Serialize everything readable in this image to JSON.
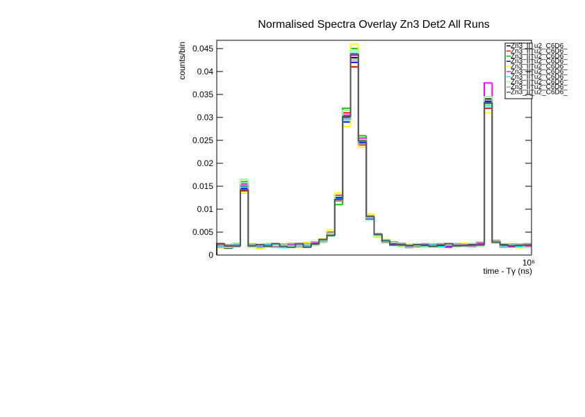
{
  "chart_data": {
    "type": "histogram",
    "title": "Normalised Spectra Overlay Zn3 Det2 All Runs",
    "x_label": "time - Tγ (ns)",
    "y_label": "counts/bin",
    "bins": [
      0,
      25000,
      50000,
      75000,
      100000,
      125000,
      150000,
      175000,
      200000,
      225000,
      250000,
      275000,
      300000,
      325000,
      350000,
      375000,
      400000,
      425000,
      450000,
      475000,
      500000,
      525000,
      550000,
      575000,
      600000,
      625000,
      650000,
      675000,
      700000,
      725000,
      750000,
      775000,
      800000,
      825000,
      850000,
      875000,
      900000,
      925000,
      950000,
      975000,
      1000000
    ],
    "xlim": [
      0,
      1000000
    ],
    "xticks": [
      {
        "value": 1000000,
        "label": "10⁶"
      }
    ],
    "ylim": [
      0,
      0.0468
    ],
    "yticks": [
      0,
      0.005,
      0.01,
      0.015,
      0.02,
      0.025,
      0.03,
      0.035,
      0.04,
      0.045
    ],
    "series": [
      {
        "name": "Zn3_II_u2_C6D6_",
        "color": "#000000",
        "values": [
          0.002,
          0.0015,
          0.0025,
          0.015,
          0.002,
          0.0018,
          0.0022,
          0.002,
          0.0017,
          0.0024,
          0.002,
          0.0021,
          0.0026,
          0.003,
          0.0045,
          0.012,
          0.03,
          0.043,
          0.025,
          0.008,
          0.0045,
          0.003,
          0.0025,
          0.0022,
          0.002,
          0.0019,
          0.0023,
          0.002,
          0.0021,
          0.0018,
          0.0022,
          0.0024,
          0.002,
          0.0026,
          0.034,
          0.003,
          0.0022,
          0.002,
          0.0019,
          0.0021
        ]
      },
      {
        "name": "Zn3_II_u2_C6D6_",
        "color": "#ff0000",
        "values": [
          0.0025,
          0.0018,
          0.002,
          0.014,
          0.0023,
          0.0016,
          0.002,
          0.0024,
          0.0019,
          0.0021,
          0.0023,
          0.0018,
          0.0028,
          0.0033,
          0.005,
          0.013,
          0.031,
          0.041,
          0.024,
          0.0085,
          0.004,
          0.0032,
          0.0022,
          0.0024,
          0.0018,
          0.0021,
          0.002,
          0.0023,
          0.0019,
          0.0021,
          0.002,
          0.0022,
          0.0023,
          0.0024,
          0.032,
          0.0028,
          0.002,
          0.0023,
          0.0017,
          0.0022
        ]
      },
      {
        "name": "Zn3_II_u2_C6D6_",
        "color": "#00cc00",
        "values": [
          0.0018,
          0.002,
          0.0023,
          0.016,
          0.0019,
          0.0021,
          0.0019,
          0.0022,
          0.002,
          0.0018,
          0.0021,
          0.0024,
          0.0024,
          0.0029,
          0.0042,
          0.011,
          0.032,
          0.045,
          0.026,
          0.0078,
          0.0046,
          0.0029,
          0.0026,
          0.002,
          0.0022,
          0.0018,
          0.0024,
          0.0019,
          0.0022,
          0.002,
          0.0019,
          0.0025,
          0.0021,
          0.0022,
          0.033,
          0.0031,
          0.0023,
          0.0019,
          0.0021,
          0.0018
        ]
      },
      {
        "name": "Zn3_II_u2_C6D6_",
        "color": "#0000ff",
        "values": [
          0.0022,
          0.0017,
          0.0021,
          0.0145,
          0.0021,
          0.0019,
          0.0023,
          0.0018,
          0.0022,
          0.0023,
          0.0019,
          0.0022,
          0.0025,
          0.0031,
          0.0047,
          0.0125,
          0.029,
          0.042,
          0.0245,
          0.0082,
          0.0043,
          0.0031,
          0.0024,
          0.0021,
          0.0021,
          0.002,
          0.0022,
          0.0021,
          0.002,
          0.0019,
          0.0023,
          0.0021,
          0.0022,
          0.0023,
          0.0335,
          0.0029,
          0.0021,
          0.0022,
          0.002,
          0.002
        ]
      },
      {
        "name": "Zn3_II_u2_C6D6_",
        "color": "#ffff00",
        "values": [
          0.0016,
          0.0022,
          0.0019,
          0.0135,
          0.0025,
          0.0014,
          0.0025,
          0.0021,
          0.0023,
          0.0026,
          0.0017,
          0.0028,
          0.0022,
          0.0035,
          0.0055,
          0.0135,
          0.028,
          0.046,
          0.0235,
          0.009,
          0.0039,
          0.0034,
          0.0028,
          0.0019,
          0.0024,
          0.0023,
          0.0018,
          0.0025,
          0.0017,
          0.0024,
          0.0021,
          0.0026,
          0.0019,
          0.0027,
          0.031,
          0.0033,
          0.0018,
          0.0025,
          0.0016,
          0.0024
        ]
      },
      {
        "name": "Zn3_II_u2_C6D6_",
        "color": "#ff00ff",
        "values": [
          0.0021,
          0.0019,
          0.0024,
          0.0155,
          0.0018,
          0.002,
          0.0021,
          0.0019,
          0.0018,
          0.0022,
          0.0022,
          0.002,
          0.0027,
          0.0028,
          0.0044,
          0.0118,
          0.0305,
          0.0435,
          0.0255,
          0.0079,
          0.0044,
          0.003,
          0.0023,
          0.0023,
          0.0019,
          0.002,
          0.0021,
          0.0022,
          0.0023,
          0.0017,
          0.0021,
          0.0023,
          0.002,
          0.0025,
          0.0375,
          0.0027,
          0.0024,
          0.0018,
          0.0022,
          0.0019
        ]
      },
      {
        "name": "Zn3_II_u2_C6D6_",
        "color": "#00ffff",
        "values": [
          0.0019,
          0.0021,
          0.0022,
          0.0148,
          0.0022,
          0.0017,
          0.0024,
          0.0023,
          0.0016,
          0.002,
          0.0024,
          0.0019,
          0.0023,
          0.0032,
          0.0048,
          0.0122,
          0.0295,
          0.044,
          0.0248,
          0.0081,
          0.0042,
          0.0033,
          0.0021,
          0.0025,
          0.0017,
          0.0022,
          0.0019,
          0.0024,
          0.0018,
          0.0022,
          0.0024,
          0.002,
          0.0024,
          0.0021,
          0.0325,
          0.003,
          0.0019,
          0.0024,
          0.0018,
          0.0023
        ]
      },
      {
        "name": "Zn3_II_u2_C6D6_",
        "color": "#99ff99",
        "values": [
          0.0023,
          0.0016,
          0.0026,
          0.0165,
          0.0017,
          0.0022,
          0.0018,
          0.0021,
          0.0021,
          0.0019,
          0.002,
          0.0023,
          0.0021,
          0.0027,
          0.0046,
          0.0128,
          0.0315,
          0.0445,
          0.0252,
          0.0083,
          0.0041,
          0.0028,
          0.0027,
          0.0018,
          0.0023,
          0.0024,
          0.0017,
          0.002,
          0.0024,
          0.0023,
          0.0018,
          0.0022,
          0.0025,
          0.0019,
          0.0345,
          0.0026,
          0.0025,
          0.0021,
          0.0023,
          0.0017
        ]
      },
      {
        "name": "Zn3_II_u2_C6D6_",
        "color": "#aaaaaa",
        "values": [
          0.0017,
          0.0023,
          0.0018,
          0.0152,
          0.0024,
          0.0021,
          0.002,
          0.0017,
          0.0024,
          0.0025,
          0.0018,
          0.0025,
          0.0029,
          0.003,
          0.0049,
          0.0119,
          0.0298,
          0.0425,
          0.0242,
          0.0086,
          0.0047,
          0.0027,
          0.0029,
          0.0026,
          0.0016,
          0.0019,
          0.0025,
          0.0018,
          0.0025,
          0.0021,
          0.0025,
          0.0019,
          0.0018,
          0.0028,
          0.0338,
          0.0032,
          0.0017,
          0.0023,
          0.0024,
          0.0025
        ]
      },
      {
        "name": "Zn3_II_u2_C6D6_",
        "color": "#555555",
        "values": [
          0.0024,
          0.002,
          0.002,
          0.0142,
          0.002,
          0.0023,
          0.0019,
          0.0025,
          0.0019,
          0.0017,
          0.0025,
          0.0017,
          0.0024,
          0.0034,
          0.0043,
          0.0121,
          0.0302,
          0.0438,
          0.0249,
          0.0084,
          0.0045,
          0.0031,
          0.0022,
          0.0023,
          0.0021,
          0.0023,
          0.0021,
          0.0019,
          0.0022,
          0.0025,
          0.002,
          0.0021,
          0.0023,
          0.0022,
          0.0332,
          0.0028,
          0.0023,
          0.002,
          0.0021,
          0.0022
        ]
      }
    ]
  }
}
